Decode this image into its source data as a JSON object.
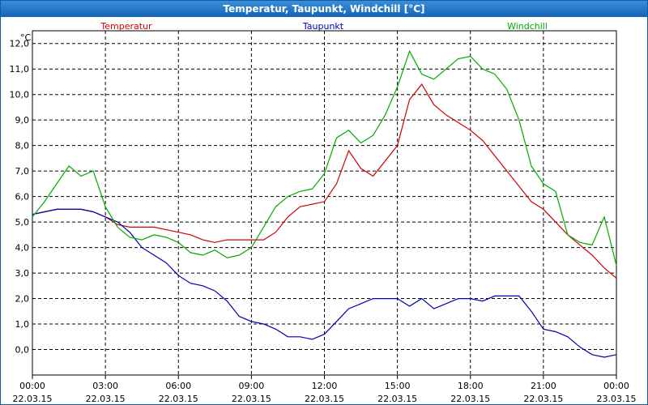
{
  "window": {
    "title": "Temperatur, Taupunkt, Windchill [°C]"
  },
  "chart_data": {
    "type": "line",
    "title": "Temperatur, Taupunkt, Windchill [°C]",
    "ylabel": "°C",
    "ylim": [
      -1.0,
      12.5
    ],
    "grid": true,
    "legend_position": "top",
    "x_labels": [
      {
        "time": "00:00",
        "date": "22.03.15"
      },
      {
        "time": "03:00",
        "date": "22.03.15"
      },
      {
        "time": "06:00",
        "date": "22.03.15"
      },
      {
        "time": "09:00",
        "date": "22.03.15"
      },
      {
        "time": "12:00",
        "date": "22.03.15"
      },
      {
        "time": "15:00",
        "date": "22.03.15"
      },
      {
        "time": "18:00",
        "date": "22.03.15"
      },
      {
        "time": "21:00",
        "date": "22.03.15"
      },
      {
        "time": "00:00",
        "date": "23.03.15"
      }
    ],
    "y_ticks": [
      "0,0",
      "1,0",
      "2,0",
      "3,0",
      "4,0",
      "5,0",
      "6,0",
      "7,0",
      "8,0",
      "9,0",
      "10,0",
      "11,0",
      "12,0"
    ],
    "x_hours": [
      0,
      0.5,
      1,
      1.5,
      2,
      2.5,
      3,
      3.5,
      4,
      4.5,
      5,
      5.5,
      6,
      6.5,
      7,
      7.5,
      8,
      8.5,
      9,
      9.5,
      10,
      10.5,
      11,
      11.5,
      12,
      12.5,
      13,
      13.5,
      14,
      14.5,
      15,
      15.5,
      16,
      16.5,
      17,
      17.5,
      18,
      18.5,
      19,
      19.5,
      20,
      20.5,
      21,
      21.5,
      22,
      22.5,
      23,
      23.5,
      24
    ],
    "series": [
      {
        "name": "Temperatur",
        "color": "#d00000",
        "values": [
          5.3,
          5.4,
          5.5,
          5.5,
          5.5,
          5.4,
          5.2,
          4.9,
          4.8,
          4.8,
          4.8,
          4.7,
          4.6,
          4.5,
          4.3,
          4.2,
          4.3,
          4.3,
          4.3,
          4.3,
          4.6,
          5.2,
          5.6,
          5.7,
          5.8,
          6.5,
          7.8,
          7.1,
          6.8,
          7.4,
          8.0,
          9.8,
          10.4,
          9.6,
          9.2,
          8.9,
          8.6,
          8.2,
          7.6,
          7.0,
          6.4,
          5.8,
          5.5,
          5.0,
          4.5,
          4.1,
          3.7,
          3.2,
          2.8
        ]
      },
      {
        "name": "Taupunkt",
        "color": "#0000b0",
        "values": [
          5.3,
          5.4,
          5.5,
          5.5,
          5.5,
          5.4,
          5.2,
          5.0,
          4.6,
          4.0,
          3.7,
          3.4,
          2.9,
          2.6,
          2.5,
          2.3,
          1.9,
          1.3,
          1.1,
          1.0,
          0.8,
          0.5,
          0.5,
          0.4,
          0.6,
          1.1,
          1.6,
          1.8,
          2.0,
          2.0,
          2.0,
          1.7,
          2.0,
          1.6,
          1.8,
          2.0,
          2.0,
          1.9,
          2.1,
          2.1,
          2.1,
          1.5,
          0.8,
          0.7,
          0.5,
          0.1,
          -0.2,
          -0.3,
          -0.2
        ]
      },
      {
        "name": "Windchill",
        "color": "#00aa00",
        "values": [
          5.2,
          5.8,
          6.5,
          7.2,
          6.8,
          7.0,
          5.6,
          4.8,
          4.4,
          4.3,
          4.5,
          4.4,
          4.2,
          3.8,
          3.7,
          3.9,
          3.6,
          3.7,
          4.0,
          4.8,
          5.6,
          6.0,
          6.2,
          6.3,
          6.9,
          8.3,
          8.6,
          8.1,
          8.4,
          9.2,
          10.3,
          11.7,
          10.8,
          10.6,
          11.0,
          11.4,
          11.5,
          11.0,
          10.8,
          10.2,
          9.0,
          7.2,
          6.5,
          6.2,
          4.5,
          4.2,
          4.1,
          5.2,
          3.3
        ]
      }
    ]
  }
}
